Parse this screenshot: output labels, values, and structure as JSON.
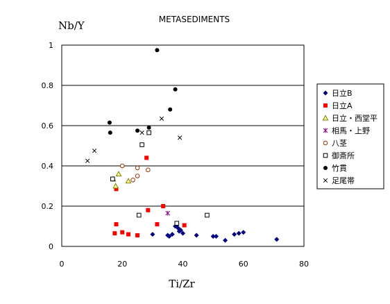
{
  "chart_data": {
    "type": "scatter",
    "title": "METASEDIMENTS",
    "xlabel": "Ti/Zr",
    "ylabel": "Nb/Y",
    "xlim": [
      0,
      80
    ],
    "ylim": [
      0,
      1
    ],
    "xticks": [
      "0",
      "20",
      "40",
      "60",
      "80"
    ],
    "yticks": [
      "0",
      "0.2",
      "0.4",
      "0.6",
      "0.8",
      "1"
    ],
    "grid": "horizontal",
    "legend_position": "right",
    "series": [
      {
        "name": "日立B",
        "marker": "diamond",
        "color": "#000080",
        "points": [
          [
            30,
            0.06
          ],
          [
            35,
            0.055
          ],
          [
            35.5,
            0.05
          ],
          [
            36.5,
            0.06
          ],
          [
            37.5,
            0.1
          ],
          [
            38,
            0.105
          ],
          [
            38.5,
            0.09
          ],
          [
            38.8,
            0.075
          ],
          [
            39.3,
            0.08
          ],
          [
            40,
            0.065
          ],
          [
            44.5,
            0.055
          ],
          [
            50,
            0.05
          ],
          [
            51,
            0.05
          ],
          [
            54,
            0.03
          ],
          [
            57,
            0.06
          ],
          [
            58.5,
            0.065
          ],
          [
            60,
            0.07
          ],
          [
            71,
            0.035
          ]
        ]
      },
      {
        "name": "日立A",
        "marker": "square",
        "color": "#ff0000",
        "points": [
          [
            17.5,
            0.065
          ],
          [
            18,
            0.11
          ],
          [
            18,
            0.285
          ],
          [
            20,
            0.07
          ],
          [
            22,
            0.06
          ],
          [
            25,
            0.055
          ],
          [
            28,
            0.44
          ],
          [
            28.5,
            0.18
          ],
          [
            31.5,
            0.11
          ],
          [
            33.5,
            0.2
          ],
          [
            40.5,
            0.105
          ]
        ]
      },
      {
        "name": "日立・西堂平",
        "marker": "triangle",
        "color": "#808000",
        "points": [
          [
            17,
            0.335
          ],
          [
            17.8,
            0.3
          ],
          [
            18.8,
            0.36
          ],
          [
            22,
            0.325
          ]
        ]
      },
      {
        "name": "相馬・上野",
        "marker": "star",
        "color": "#800080",
        "points": [
          [
            35,
            0.165
          ]
        ]
      },
      {
        "name": "八茎",
        "marker": "circle-open",
        "color": "#993300",
        "points": [
          [
            20,
            0.4
          ],
          [
            23.5,
            0.33
          ],
          [
            25,
            0.35
          ],
          [
            25,
            0.39
          ],
          [
            28.5,
            0.38
          ]
        ]
      },
      {
        "name": "御斎所",
        "marker": "square-open",
        "color": "#000000",
        "points": [
          [
            16.8,
            0.335
          ],
          [
            25.5,
            0.155
          ],
          [
            26.5,
            0.505
          ],
          [
            28.8,
            0.565
          ],
          [
            38,
            0.115
          ],
          [
            48,
            0.155
          ]
        ]
      },
      {
        "name": "竹貫",
        "marker": "circle",
        "color": "#000000",
        "points": [
          [
            15.8,
            0.615
          ],
          [
            16,
            0.565
          ],
          [
            25,
            0.575
          ],
          [
            28.8,
            0.59
          ],
          [
            31.5,
            0.975
          ],
          [
            35.8,
            0.68
          ],
          [
            37.5,
            0.78
          ]
        ]
      },
      {
        "name": "足尾帯",
        "marker": "x",
        "color": "#000000",
        "points": [
          [
            8.5,
            0.425
          ],
          [
            10.8,
            0.475
          ],
          [
            26.5,
            0.565
          ],
          [
            33,
            0.635
          ],
          [
            39,
            0.54
          ]
        ]
      }
    ]
  }
}
